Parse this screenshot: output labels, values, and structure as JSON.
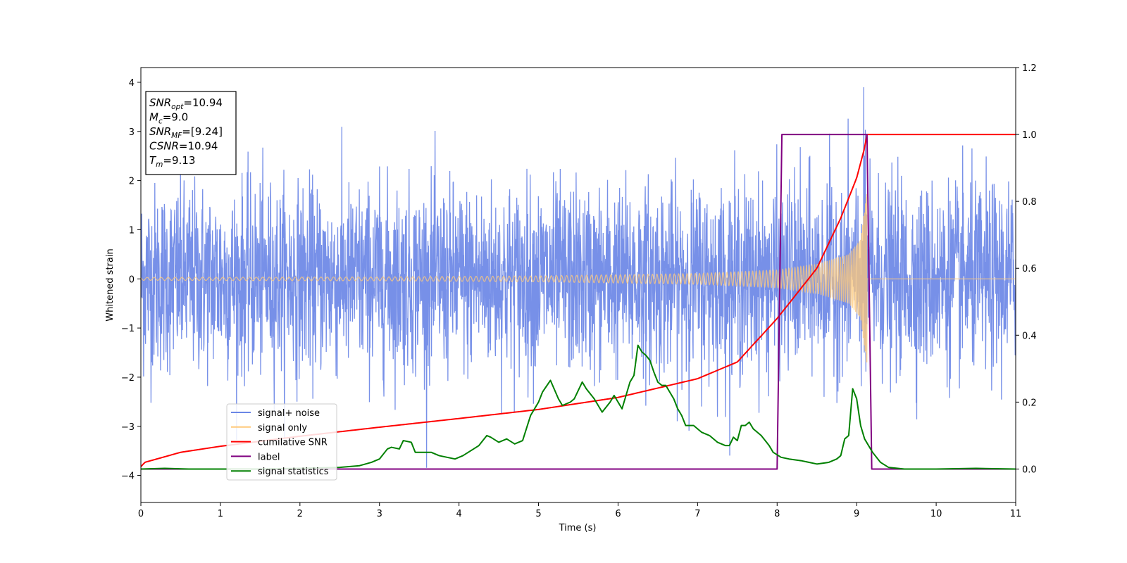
{
  "chart_data": {
    "type": "line",
    "xlabel": "Time (s)",
    "ylabel": "Whitened strain",
    "xlim": [
      0,
      11
    ],
    "ylim": [
      -4.55,
      4.3
    ],
    "y2lim": [
      -0.1,
      1.2
    ],
    "x_ticks": [
      "0",
      "1",
      "2",
      "3",
      "4",
      "5",
      "6",
      "7",
      "8",
      "9",
      "10",
      "11"
    ],
    "y_ticks": [
      "4",
      "3",
      "2",
      "1",
      "0",
      "−1",
      "−2",
      "−3",
      "−4"
    ],
    "y2_ticks": [
      "1.2",
      "1.0",
      "0.8",
      "0.6",
      "0.4",
      "0.2",
      "0.0"
    ],
    "y2_tick_values": [
      1.2,
      1.0,
      0.8,
      0.6,
      0.4,
      0.2,
      0.0
    ],
    "info_box": [
      {
        "main": "SNR",
        "sub": "opt",
        "value": "=10.94"
      },
      {
        "main": "M",
        "sub": "c",
        "value": "=9.0"
      },
      {
        "main": "SNR",
        "sub": "MF",
        "value": "=[9.24]"
      },
      {
        "main": "CSNR",
        "sub": "",
        "value": "=10.94"
      },
      {
        "main": "T",
        "sub": "m",
        "value": "=9.13"
      }
    ],
    "legend": [
      {
        "label": "signal+ noise",
        "color": "#6b87e6"
      },
      {
        "label": "signal only",
        "color": "#ffc97a"
      },
      {
        "label": "cumilative SNR",
        "color": "#ff0000"
      },
      {
        "label": "label",
        "color": "#800080"
      },
      {
        "label": "signal statistics",
        "color": "#008000"
      }
    ],
    "legend_position": "lower-left",
    "series": [
      {
        "name": "signal+ noise",
        "axis": "left",
        "color": "#6b87e6",
        "noise_std": 1.0,
        "max": 3.9,
        "min": -4.15
      },
      {
        "name": "signal only",
        "axis": "left",
        "color": "#ffc97a",
        "amplitude_envelope": {
          "x": [
            0,
            3,
            5,
            7,
            8,
            8.5,
            8.9,
            9.05,
            9.13
          ],
          "y": [
            0.03,
            0.04,
            0.06,
            0.11,
            0.18,
            0.3,
            0.5,
            0.8,
            1.8
          ]
        },
        "zero_after": 9.13
      },
      {
        "name": "cumilative SNR",
        "axis": "right",
        "color": "#ff0000",
        "x": [
          0,
          0.05,
          0.5,
          1,
          2,
          3,
          4,
          5,
          6,
          7,
          7.5,
          8,
          8.5,
          8.8,
          9.0,
          9.1,
          9.13,
          11
        ],
        "y": [
          0.007,
          0.02,
          0.05,
          0.068,
          0.098,
          0.125,
          0.151,
          0.178,
          0.214,
          0.27,
          0.32,
          0.45,
          0.6,
          0.75,
          0.87,
          0.96,
          1.0,
          1.0
        ]
      },
      {
        "name": "label",
        "axis": "right",
        "color": "#800080",
        "x": [
          0,
          8.0,
          8.06,
          9.13,
          9.19,
          11
        ],
        "y": [
          0,
          0,
          1,
          1,
          0,
          0
        ]
      },
      {
        "name": "signal statistics",
        "axis": "right",
        "color": "#008000",
        "x": [
          0,
          0.3,
          0.6,
          1,
          1.5,
          2,
          2.5,
          2.75,
          2.9,
          3.0,
          3.1,
          3.15,
          3.25,
          3.3,
          3.4,
          3.45,
          3.55,
          3.65,
          3.75,
          3.85,
          3.95,
          4.05,
          4.15,
          4.25,
          4.35,
          4.4,
          4.5,
          4.6,
          4.7,
          4.8,
          4.9,
          5.0,
          5.05,
          5.15,
          5.25,
          5.3,
          5.4,
          5.45,
          5.55,
          5.6,
          5.7,
          5.8,
          5.9,
          5.95,
          6.05,
          6.1,
          6.15,
          6.2,
          6.25,
          6.3,
          6.35,
          6.4,
          6.45,
          6.5,
          6.55,
          6.6,
          6.65,
          6.7,
          6.75,
          6.8,
          6.85,
          6.9,
          6.95,
          7.0,
          7.05,
          7.15,
          7.25,
          7.3,
          7.35,
          7.4,
          7.45,
          7.5,
          7.55,
          7.6,
          7.65,
          7.7,
          7.8,
          7.9,
          7.95,
          8.05,
          8.15,
          8.3,
          8.5,
          8.65,
          8.75,
          8.8,
          8.85,
          8.9,
          8.95,
          9.0,
          9.05,
          9.1,
          9.2,
          9.3,
          9.4,
          9.6,
          10,
          10.5,
          11
        ],
        "y": [
          0.0,
          0.002,
          0.0,
          0.0,
          0.0,
          0.002,
          0.005,
          0.01,
          0.02,
          0.03,
          0.06,
          0.065,
          0.06,
          0.085,
          0.08,
          0.05,
          0.05,
          0.05,
          0.04,
          0.035,
          0.03,
          0.04,
          0.055,
          0.07,
          0.1,
          0.095,
          0.08,
          0.09,
          0.075,
          0.085,
          0.16,
          0.2,
          0.23,
          0.265,
          0.21,
          0.19,
          0.2,
          0.21,
          0.26,
          0.24,
          0.21,
          0.17,
          0.2,
          0.22,
          0.18,
          0.22,
          0.26,
          0.28,
          0.37,
          0.35,
          0.34,
          0.325,
          0.29,
          0.26,
          0.25,
          0.25,
          0.23,
          0.21,
          0.18,
          0.16,
          0.13,
          0.13,
          0.13,
          0.12,
          0.11,
          0.1,
          0.08,
          0.075,
          0.07,
          0.07,
          0.095,
          0.085,
          0.13,
          0.13,
          0.14,
          0.12,
          0.1,
          0.07,
          0.05,
          0.035,
          0.03,
          0.025,
          0.015,
          0.02,
          0.03,
          0.04,
          0.09,
          0.1,
          0.24,
          0.21,
          0.13,
          0.09,
          0.05,
          0.02,
          0.005,
          0.0,
          0.0,
          0.002,
          0.0
        ]
      }
    ]
  }
}
